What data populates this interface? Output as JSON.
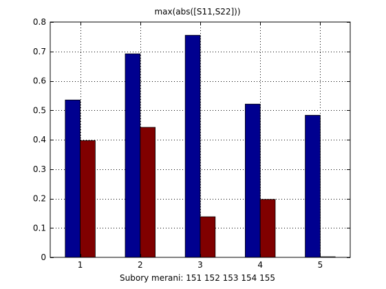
{
  "chart_data": {
    "type": "bar",
    "title": "max(abs([S11,S22]))",
    "xlabel": "Subory merani: 151 152 153 154 155",
    "ylabel": "",
    "categories": [
      "1",
      "2",
      "3",
      "4",
      "5"
    ],
    "series": [
      {
        "values": [
          0.535,
          0.692,
          0.755,
          0.521,
          0.483
        ],
        "color": "#00008f"
      },
      {
        "values": [
          0.397,
          0.442,
          0.138,
          0.197,
          0.002
        ],
        "color": "#800000"
      }
    ],
    "ylim": [
      0,
      0.8
    ],
    "yticks": [
      "0",
      "0.1",
      "0.2",
      "0.3",
      "0.4",
      "0.5",
      "0.6",
      "0.7",
      "0.8"
    ],
    "grid": true,
    "legend": "none"
  }
}
